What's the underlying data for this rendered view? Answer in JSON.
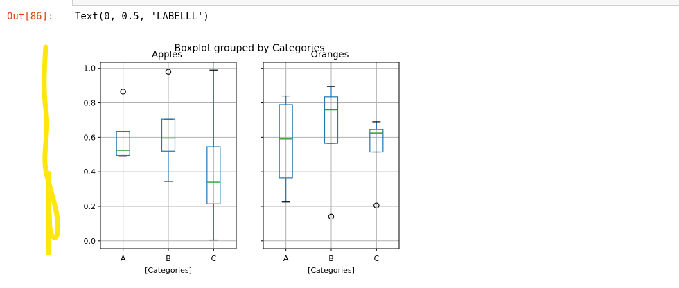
{
  "notebook": {
    "out_prompt": "Out[86]:",
    "out_text": "Text(0, 0.5, 'LABELLL')"
  },
  "colors": {
    "prompt": "#d84315",
    "box": "#1f77b4",
    "median": "#2ca02c",
    "grid": "#b0b0b0",
    "highlighter": "#ffe600"
  },
  "chart_data": [
    {
      "type": "boxplot",
      "suptitle": "Boxplot grouped by Categories",
      "title": "Apples",
      "xlabel": "[Categories]",
      "ylabel": "",
      "categories": [
        "A",
        "B",
        "C"
      ],
      "ylim": [
        -0.045,
        1.035
      ],
      "yticks": [
        0.0,
        0.2,
        0.4,
        0.6,
        0.8,
        1.0
      ],
      "ytick_labels": [
        "0.0",
        "0.2",
        "0.4",
        "0.6",
        "0.8",
        "1.0"
      ],
      "grid": true,
      "boxes": [
        {
          "category": "A",
          "whislo": 0.49,
          "q1": 0.495,
          "med": 0.525,
          "q3": 0.635,
          "whishi": 0.635,
          "fliers": [
            0.865
          ]
        },
        {
          "category": "B",
          "whislo": 0.345,
          "q1": 0.52,
          "med": 0.595,
          "q3": 0.705,
          "whishi": 0.705,
          "fliers": [
            0.98
          ]
        },
        {
          "category": "C",
          "whislo": 0.005,
          "q1": 0.215,
          "med": 0.34,
          "q3": 0.545,
          "whishi": 0.99,
          "fliers": []
        }
      ]
    },
    {
      "type": "boxplot",
      "title": "Oranges",
      "xlabel": "[Categories]",
      "ylabel": "",
      "categories": [
        "A",
        "B",
        "C"
      ],
      "ylim": [
        -0.045,
        1.035
      ],
      "grid": true,
      "boxes": [
        {
          "category": "A",
          "whislo": 0.225,
          "q1": 0.365,
          "med": 0.59,
          "q3": 0.79,
          "whishi": 0.84,
          "fliers": []
        },
        {
          "category": "B",
          "whislo": 0.565,
          "q1": 0.565,
          "med": 0.76,
          "q3": 0.835,
          "whishi": 0.895,
          "fliers": [
            0.14
          ]
        },
        {
          "category": "C",
          "whislo": 0.515,
          "q1": 0.515,
          "med": 0.625,
          "q3": 0.645,
          "whishi": 0.69,
          "fliers": [
            0.205
          ]
        }
      ]
    }
  ]
}
